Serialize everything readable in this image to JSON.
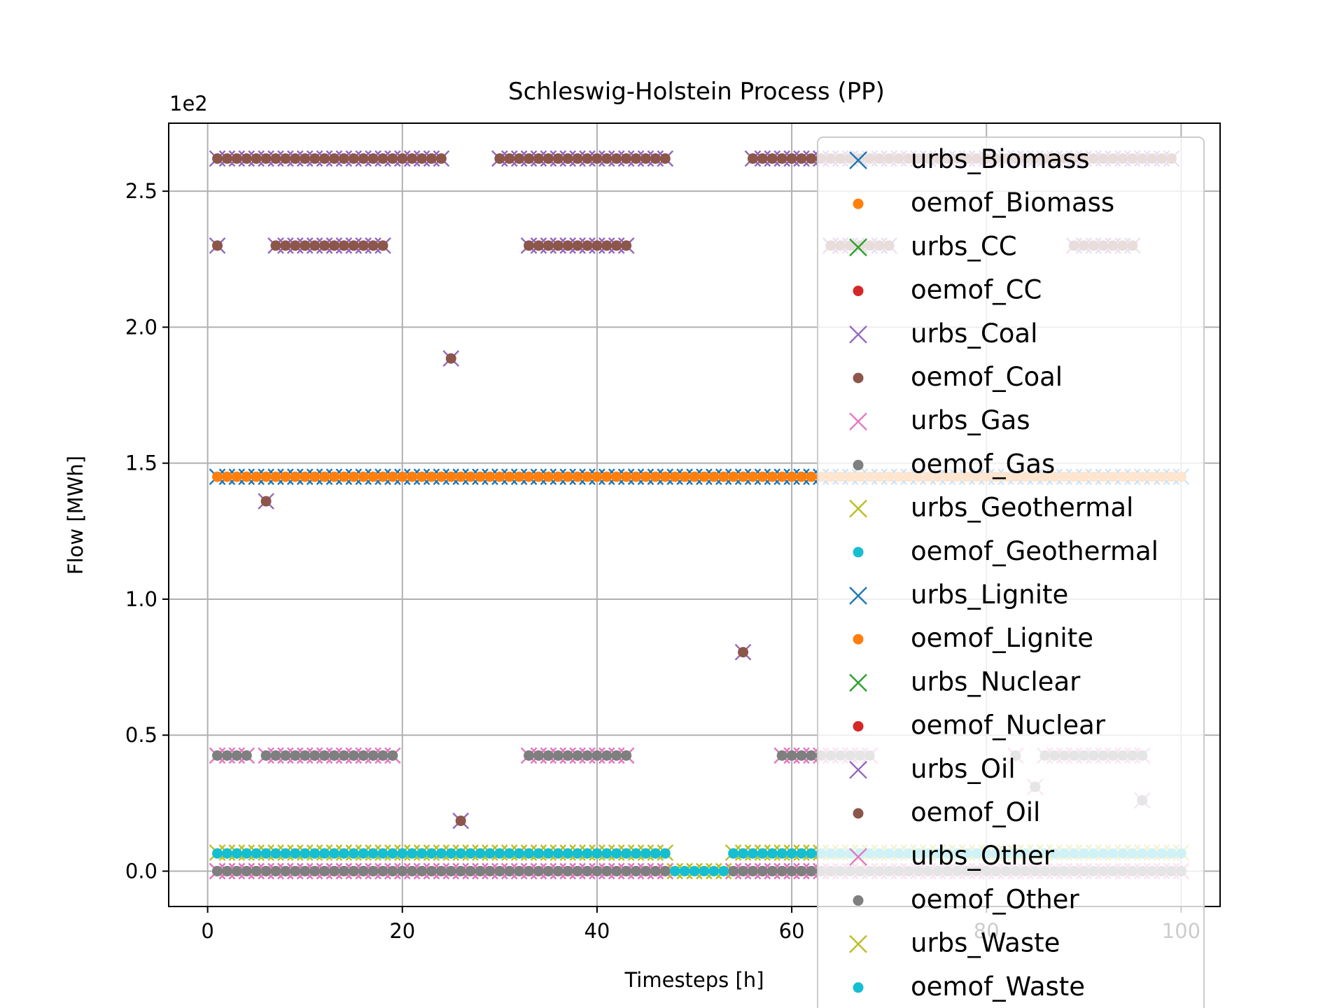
{
  "chart_data": {
    "type": "scatter",
    "title": "Schleswig-Holstein Process (PP)",
    "xlabel": "Timesteps [h]",
    "ylabel": "Flow [MWh]",
    "offset_label": "1e2",
    "xlim": [
      -4,
      104
    ],
    "ylim": [
      -0.13,
      2.75
    ],
    "xticks": [
      0,
      20,
      40,
      60,
      80,
      100
    ],
    "yticks": [
      0.0,
      0.5,
      1.0,
      1.5,
      2.0,
      2.5
    ],
    "xtick_labels": [
      "0",
      "20",
      "40",
      "60",
      "80",
      "100"
    ],
    "ytick_labels": [
      "0.0",
      "0.5",
      "1.0",
      "1.5",
      "2.0",
      "2.5"
    ],
    "grid": true,
    "legend_position": "right",
    "series": [
      {
        "name": "urbs_Biomass",
        "marker": "x",
        "color": "#1f77b4",
        "segments": [
          [
            1,
            100,
            1.45
          ]
        ],
        "points": []
      },
      {
        "name": "oemof_Biomass",
        "marker": "dot",
        "color": "#ff7f0e",
        "segments": [
          [
            1,
            100,
            1.45
          ]
        ],
        "points": []
      },
      {
        "name": "urbs_CC",
        "marker": "x",
        "color": "#2ca02c",
        "segments": [],
        "points": []
      },
      {
        "name": "oemof_CC",
        "marker": "dot",
        "color": "#d62728",
        "segments": [],
        "points": []
      },
      {
        "name": "urbs_Coal",
        "marker": "x",
        "color": "#9467bd",
        "segments": [
          [
            1,
            24,
            2.62
          ],
          [
            30,
            47,
            2.62
          ],
          [
            56,
            99,
            2.62
          ],
          [
            7,
            18,
            2.3
          ],
          [
            33,
            43,
            2.3
          ],
          [
            64,
            70,
            2.3
          ],
          [
            89,
            95,
            2.3
          ],
          [
            1,
            47,
            0.0
          ],
          [
            54,
            100,
            0.0
          ]
        ],
        "points": [
          [
            1,
            2.3
          ],
          [
            25,
            1.885
          ],
          [
            6,
            1.36
          ],
          [
            55,
            0.805
          ],
          [
            26,
            0.185
          ]
        ]
      },
      {
        "name": "oemof_Coal",
        "marker": "dot",
        "color": "#8c564b",
        "segments": [
          [
            1,
            24,
            2.62
          ],
          [
            30,
            47,
            2.62
          ],
          [
            56,
            99,
            2.62
          ],
          [
            7,
            18,
            2.3
          ],
          [
            33,
            43,
            2.3
          ],
          [
            64,
            70,
            2.3
          ],
          [
            89,
            95,
            2.3
          ],
          [
            1,
            47,
            0.0
          ],
          [
            54,
            100,
            0.0
          ]
        ],
        "points": [
          [
            1,
            2.3
          ],
          [
            25,
            1.885
          ],
          [
            6,
            1.36
          ],
          [
            55,
            0.805
          ],
          [
            26,
            0.185
          ]
        ]
      },
      {
        "name": "urbs_Gas",
        "marker": "x",
        "color": "#e377c2",
        "segments": [
          [
            1,
            4,
            0.425
          ],
          [
            6,
            19,
            0.425
          ],
          [
            33,
            43,
            0.425
          ],
          [
            59,
            68,
            0.425
          ],
          [
            86,
            96,
            0.425
          ],
          [
            1,
            47,
            0.0
          ],
          [
            54,
            100,
            0.0
          ]
        ],
        "points": [
          [
            83,
            0.425
          ],
          [
            85,
            0.31
          ],
          [
            96,
            0.26
          ]
        ]
      },
      {
        "name": "oemof_Gas",
        "marker": "dot",
        "color": "#7f7f7f",
        "segments": [
          [
            1,
            4,
            0.425
          ],
          [
            6,
            19,
            0.425
          ],
          [
            33,
            43,
            0.425
          ],
          [
            59,
            68,
            0.425
          ],
          [
            86,
            96,
            0.425
          ],
          [
            1,
            47,
            0.0
          ],
          [
            54,
            100,
            0.0
          ]
        ],
        "points": [
          [
            83,
            0.425
          ],
          [
            85,
            0.31
          ],
          [
            96,
            0.26
          ]
        ]
      },
      {
        "name": "urbs_Geothermal",
        "marker": "x",
        "color": "#bcbd22",
        "segments": [
          [
            1,
            47,
            0.068
          ],
          [
            54,
            100,
            0.068
          ],
          [
            48,
            53,
            0.0
          ]
        ],
        "points": []
      },
      {
        "name": "oemof_Geothermal",
        "marker": "dot",
        "color": "#17becf",
        "segments": [
          [
            1,
            47,
            0.065
          ],
          [
            54,
            100,
            0.065
          ],
          [
            48,
            53,
            0.0
          ]
        ],
        "points": []
      },
      {
        "name": "urbs_Lignite",
        "marker": "x",
        "color": "#1f77b4",
        "segments": [],
        "points": []
      },
      {
        "name": "oemof_Lignite",
        "marker": "dot",
        "color": "#ff7f0e",
        "segments": [],
        "points": []
      },
      {
        "name": "urbs_Nuclear",
        "marker": "x",
        "color": "#2ca02c",
        "segments": [],
        "points": []
      },
      {
        "name": "oemof_Nuclear",
        "marker": "dot",
        "color": "#d62728",
        "segments": [],
        "points": []
      },
      {
        "name": "urbs_Oil",
        "marker": "x",
        "color": "#9467bd",
        "segments": [],
        "points": []
      },
      {
        "name": "oemof_Oil",
        "marker": "dot",
        "color": "#8c564b",
        "segments": [],
        "points": []
      },
      {
        "name": "urbs_Other",
        "marker": "x",
        "color": "#e377c2",
        "segments": [],
        "points": []
      },
      {
        "name": "oemof_Other",
        "marker": "dot",
        "color": "#7f7f7f",
        "segments": [],
        "points": []
      },
      {
        "name": "urbs_Waste",
        "marker": "x",
        "color": "#bcbd22",
        "segments": [],
        "points": []
      },
      {
        "name": "oemof_Waste",
        "marker": "dot",
        "color": "#17becf",
        "segments": [],
        "points": []
      }
    ]
  }
}
